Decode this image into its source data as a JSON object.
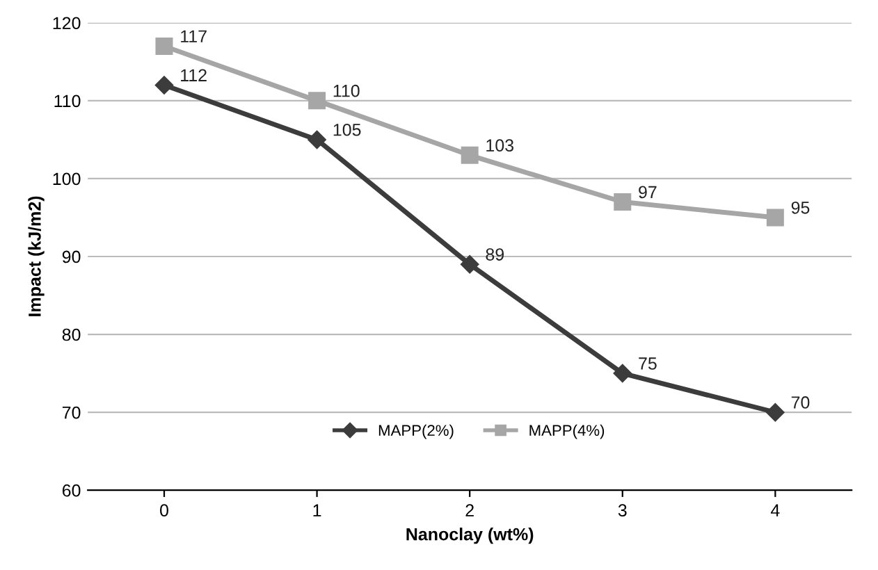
{
  "chart_data": {
    "type": "line",
    "xlabel": "Nanoclay (wt%)",
    "ylabel": "Impact (kJ/m2)",
    "categories": [
      "0",
      "1",
      "2",
      "3",
      "4"
    ],
    "series": [
      {
        "name": "MAPP(2%)",
        "color": "#3c3c3c",
        "marker": "diamond",
        "values": [
          112,
          105,
          89,
          75,
          70
        ]
      },
      {
        "name": "MAPP(4%)",
        "color": "#a6a6a6",
        "marker": "square",
        "values": [
          117,
          110,
          103,
          97,
          95
        ]
      }
    ],
    "ylim": [
      60,
      120
    ],
    "yticks": [
      60,
      70,
      80,
      90,
      100,
      110,
      120
    ],
    "grid": "y",
    "legend": "bottom",
    "data_labels": true,
    "line_style": "solid"
  }
}
